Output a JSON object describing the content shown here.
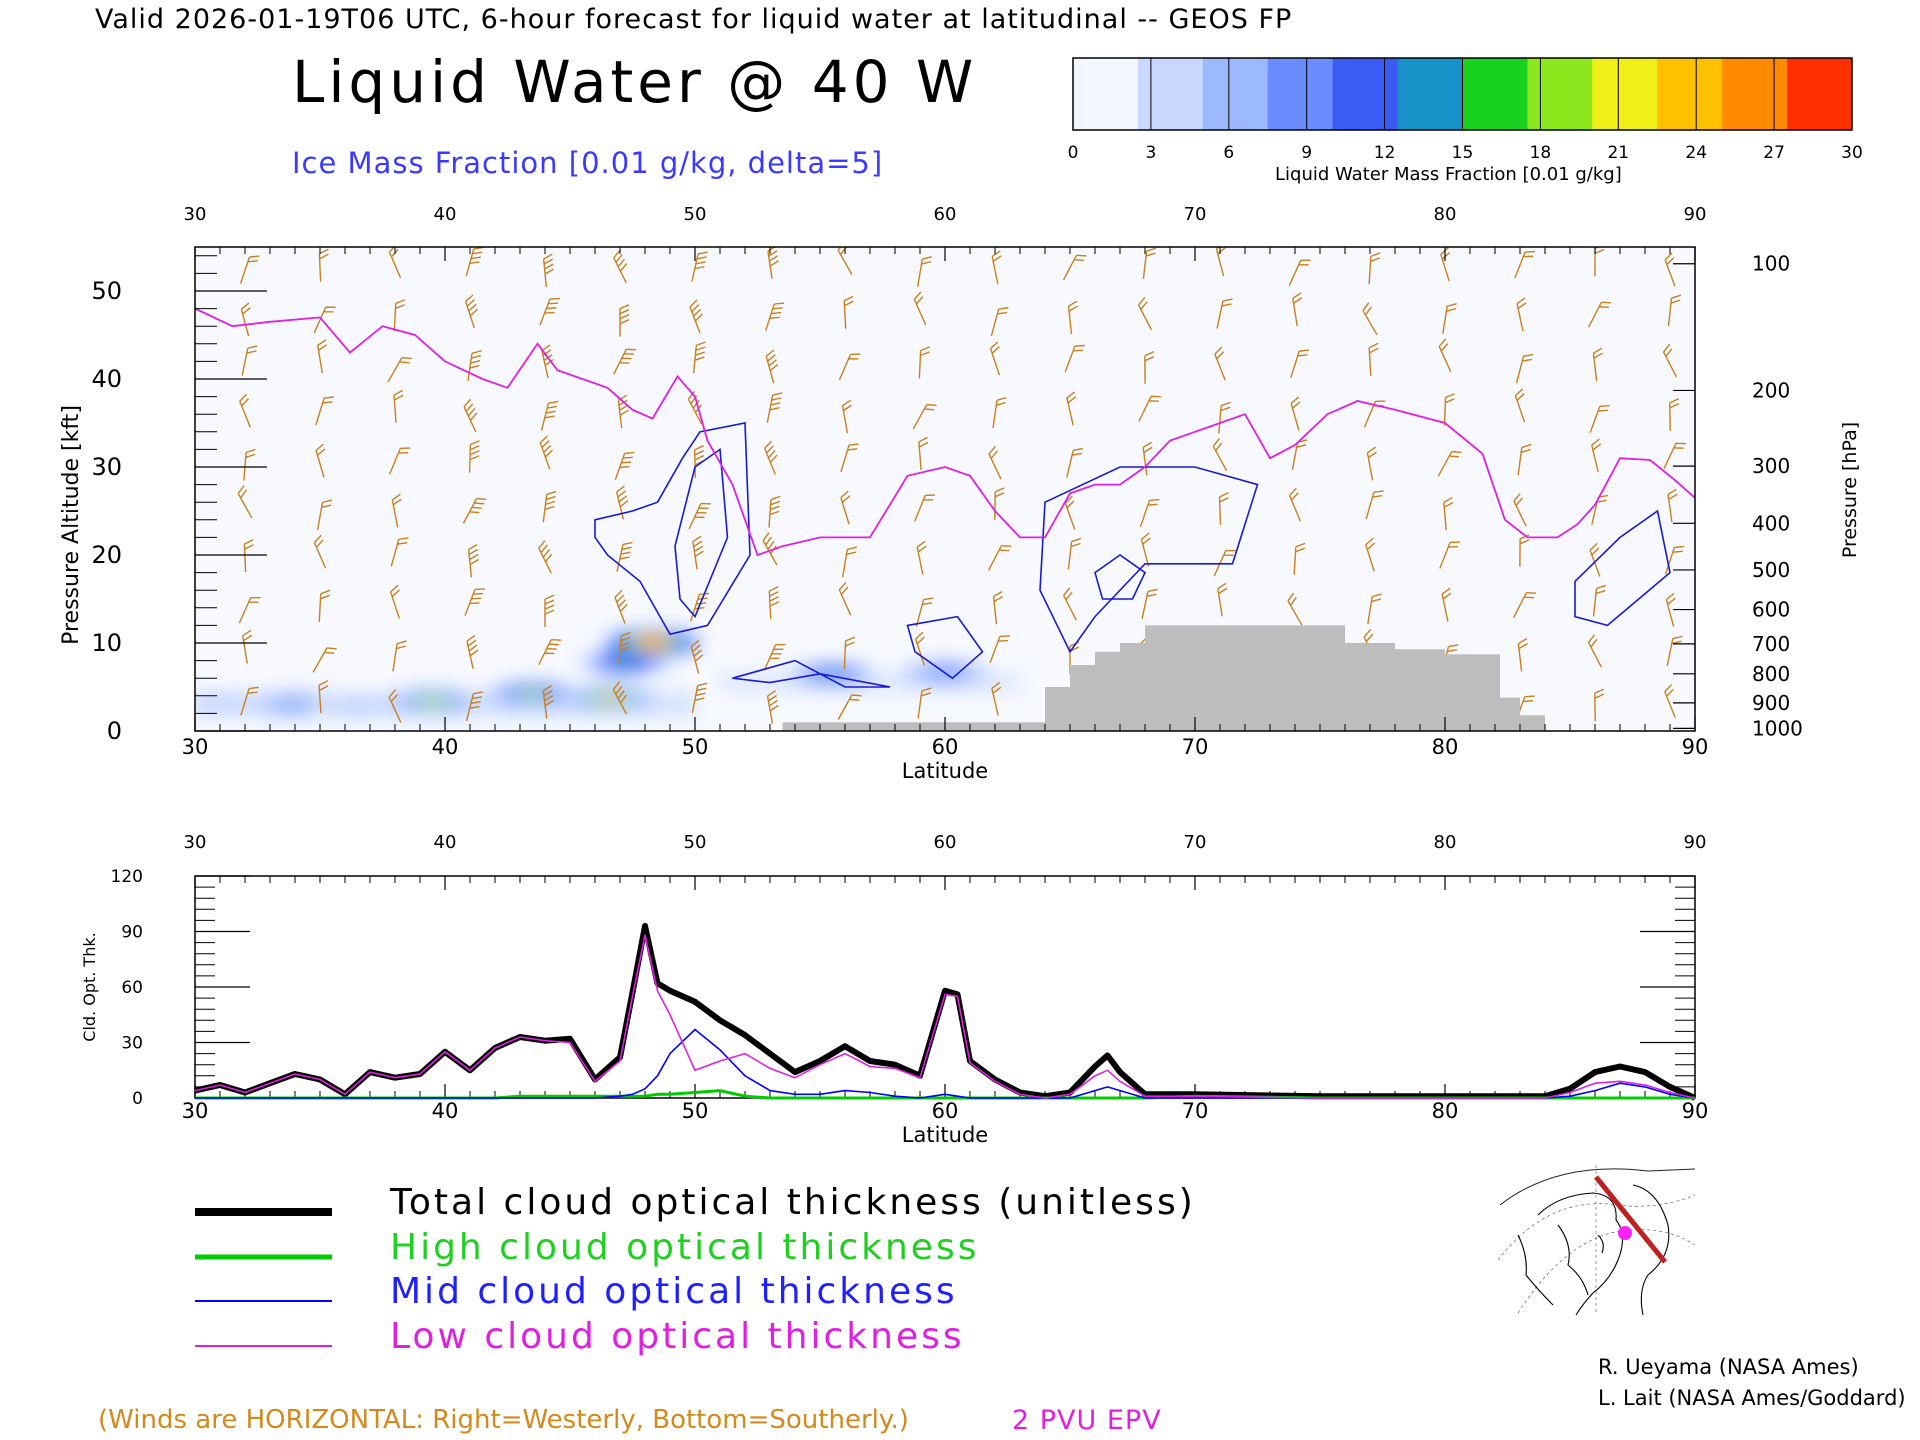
{
  "header": "Valid 2026-01-19T06 UTC, 6-hour forecast for liquid water at latitudinal -- GEOS FP",
  "title": "Liquid Water @ 40 W",
  "subtitle": "Ice Mass Fraction [0.01 g/kg, delta=5]",
  "colorbar": {
    "label": "Liquid Water Mass Fraction [0.01 g/kg]",
    "ticks": [
      "0",
      "3",
      "6",
      "9",
      "12",
      "15",
      "18",
      "21",
      "24",
      "27",
      "30"
    ],
    "colors": [
      "#f4f7ff",
      "#c8d8ff",
      "#9cb8ff",
      "#6a8cff",
      "#3a5cf4",
      "#1890c8",
      "#18d020",
      "#8ce81c",
      "#f0f018",
      "#ffc000",
      "#ff8a00",
      "#ff3000"
    ]
  },
  "chart_data": [
    {
      "type": "heatmap",
      "name": "cross-section",
      "title": "Liquid Water @ 40 W",
      "xlabel": "Latitude",
      "ylabel": "Pressure Altitude [kft]",
      "ylabel_right": "Pressure [hPa]",
      "xlim": [
        30,
        90
      ],
      "ylim": [
        0,
        55
      ],
      "x_ticks": [
        "30",
        "40",
        "50",
        "60",
        "70",
        "80",
        "90"
      ],
      "y_ticks": [
        "0",
        "10",
        "20",
        "30",
        "40",
        "50"
      ],
      "pressure_ticks": [
        "100",
        "200",
        "300",
        "400",
        "500",
        "600",
        "700",
        "800",
        "900",
        "1000"
      ],
      "pressure_tick_kft": [
        53.1,
        38.7,
        30.1,
        23.6,
        18.3,
        13.8,
        9.9,
        6.5,
        3.2,
        0.3
      ],
      "epv_2pvu_line": {
        "lat": [
          30,
          31.5,
          33,
          35,
          36.2,
          37.5,
          38.8,
          40,
          41.5,
          42.5,
          43.7,
          44.5,
          45.5,
          46.5,
          47.5,
          48.3,
          49.3,
          50,
          50.5,
          51.5,
          52.5,
          53.5,
          55,
          57,
          58.5,
          60,
          61,
          62,
          63,
          64,
          65,
          66,
          67,
          68,
          69,
          70,
          71,
          72,
          73,
          74,
          75.3,
          76.5,
          78,
          80,
          81.5,
          82.4,
          83.3,
          84.5,
          85.3,
          86,
          87,
          88.2,
          89.2,
          90
        ],
        "kft": [
          48,
          46,
          46.5,
          47,
          43,
          46,
          45,
          42,
          40,
          39,
          44,
          41,
          40,
          39,
          36.5,
          35.5,
          40.3,
          38,
          33,
          28,
          20,
          21,
          22,
          22,
          29,
          30,
          29,
          25,
          22,
          22,
          27,
          28,
          28,
          30,
          33,
          34,
          35,
          36,
          31,
          32.5,
          36,
          37.5,
          36.5,
          35,
          31.5,
          24,
          22,
          22,
          23.5,
          25.7,
          31,
          30.8,
          28.5,
          26.5
        ]
      },
      "orography": {
        "lat": [
          30,
          53.5,
          53.5,
          64,
          64,
          65,
          65,
          66,
          66,
          67,
          67,
          68,
          68,
          76,
          76,
          78,
          78,
          80,
          80,
          82.2,
          82.2,
          83,
          83,
          84,
          84,
          90
        ],
        "kft": [
          0,
          0,
          1,
          1,
          5,
          5,
          7.5,
          7.5,
          9,
          9,
          10,
          10,
          12,
          12,
          10,
          10,
          9.3,
          9.3,
          8.7,
          8.7,
          3.8,
          3.8,
          1.8,
          1.8,
          0,
          0
        ]
      },
      "liquid_water_cells": [
        {
          "lat": 31.0,
          "kft": 3.2,
          "value": 4
        },
        {
          "lat": 34.0,
          "kft": 3.0,
          "value": 14
        },
        {
          "lat": 36.5,
          "kft": 2.6,
          "value": 5
        },
        {
          "lat": 39.5,
          "kft": 3.3,
          "value": 22
        },
        {
          "lat": 43.5,
          "kft": 4.0,
          "value": 20
        },
        {
          "lat": 46.6,
          "kft": 3.6,
          "value": 26
        },
        {
          "lat": 47.2,
          "kft": 7.8,
          "value": 16
        },
        {
          "lat": 48.3,
          "kft": 10.0,
          "value": 29
        },
        {
          "lat": 55.5,
          "kft": 6.3,
          "value": 14
        },
        {
          "lat": 60.0,
          "kft": 6.5,
          "value": 10
        }
      ]
    },
    {
      "type": "line",
      "name": "cloud-optical-thickness",
      "xlabel": "Latitude",
      "ylabel": "Cld. Opt. Thk.",
      "xlim": [
        30,
        90
      ],
      "ylim": [
        0,
        120
      ],
      "x_ticks": [
        "30",
        "40",
        "50",
        "60",
        "70",
        "80",
        "90"
      ],
      "y_ticks": [
        "0",
        "30",
        "60",
        "90",
        "120"
      ],
      "x": [
        30,
        31,
        32,
        33,
        34,
        35,
        36,
        37,
        38,
        39,
        40,
        41,
        42,
        43,
        44,
        45,
        46,
        47,
        47.5,
        48,
        48.5,
        49,
        50,
        51,
        52,
        53,
        54,
        55,
        56,
        57,
        58,
        59,
        60,
        60.5,
        61,
        62,
        63,
        64,
        65,
        66,
        66.5,
        67,
        68,
        70,
        75,
        80,
        84,
        85,
        86,
        87,
        88,
        89,
        90
      ],
      "series": [
        {
          "name": "Total cloud optical thickness (unitless)",
          "color": "#000000",
          "values": [
            4,
            7,
            3,
            8,
            13,
            10,
            2,
            14,
            11,
            13,
            25,
            15,
            27,
            33,
            31,
            32,
            10,
            22,
            57,
            93,
            62,
            58,
            52,
            42,
            34,
            24,
            14,
            20,
            28,
            20,
            18,
            12,
            58,
            56,
            20,
            10,
            3,
            1,
            3,
            17,
            23,
            14,
            2,
            2,
            1,
            1,
            1,
            5,
            14,
            17,
            14,
            6,
            0
          ]
        },
        {
          "name": "High cloud optical thickness",
          "color": "#00cc00",
          "values": [
            0,
            0,
            0,
            0,
            0,
            0,
            0,
            0,
            0,
            0,
            0,
            0,
            0,
            1,
            1,
            1,
            1,
            1,
            1,
            1,
            2,
            2,
            3,
            4,
            1,
            0,
            0,
            0,
            0,
            0,
            0,
            0,
            0,
            0,
            0,
            0,
            0,
            0,
            0,
            0,
            0,
            0,
            0,
            1,
            0,
            0,
            0,
            0,
            0,
            0,
            0,
            0,
            0
          ]
        },
        {
          "name": "Mid cloud optical thickness",
          "color": "#0000ff",
          "values": [
            0,
            0,
            0,
            0,
            0,
            0,
            0,
            0,
            0,
            0,
            0,
            0,
            0,
            0,
            0,
            0,
            0,
            1,
            2,
            5,
            12,
            24,
            37,
            26,
            12,
            4,
            2,
            2,
            4,
            3,
            1,
            0,
            2,
            1,
            0,
            0,
            0,
            0,
            0,
            4,
            6,
            4,
            0,
            0,
            0,
            0,
            0,
            1,
            4,
            8,
            6,
            2,
            0
          ]
        },
        {
          "name": "Low cloud optical thickness",
          "color": "#e020e0",
          "values": [
            4,
            7,
            3,
            8,
            13,
            10,
            2,
            14,
            11,
            13,
            25,
            15,
            27,
            33,
            31,
            30,
            9,
            20,
            55,
            88,
            58,
            45,
            15,
            20,
            24,
            16,
            11,
            18,
            24,
            17,
            16,
            11,
            56,
            55,
            19,
            9,
            2,
            0,
            2,
            12,
            15,
            9,
            1,
            1,
            0,
            0,
            0,
            3,
            8,
            9,
            7,
            3,
            0
          ]
        }
      ]
    }
  ],
  "legend": {
    "total": "Total cloud optical thickness (unitless)",
    "high": "High cloud optical thickness",
    "mid": "Mid cloud optical thickness",
    "low": "Low cloud optical thickness"
  },
  "footer": {
    "winds": "(Winds are HORIZONTAL: Right=Westerly, Bottom=Southerly.)",
    "epv": "2 PVU EPV",
    "credit_1": "R. Ueyama (NASA Ames)",
    "credit_2": "L. Lait (NASA Ames/Goddard)"
  }
}
